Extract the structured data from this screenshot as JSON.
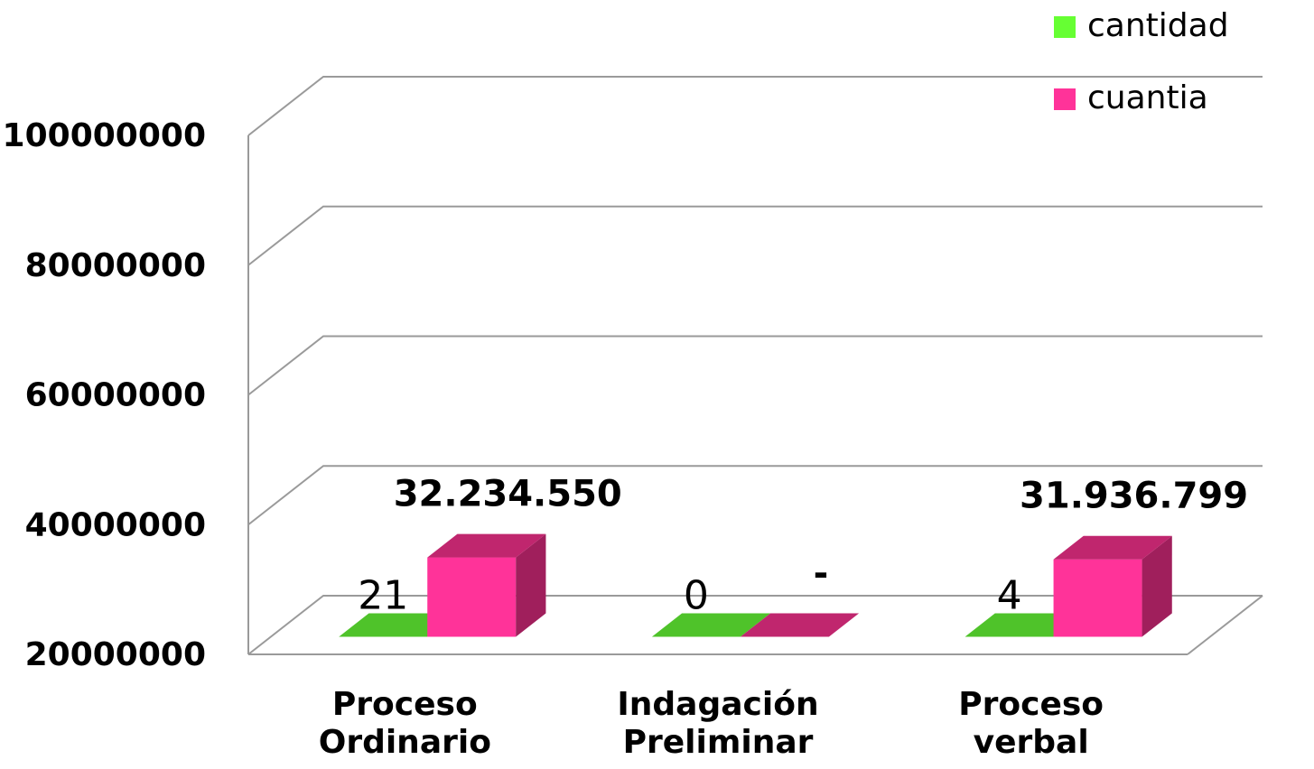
{
  "chart_data": {
    "type": "bar3d",
    "categories": [
      "Proceso Ordinario",
      "Indagación Preliminar",
      "Proceso verbal"
    ],
    "series": [
      {
        "name": "cantidad",
        "color": "#66ff33",
        "values": [
          21,
          0,
          4
        ],
        "value_labels": [
          "21",
          "0",
          "4"
        ]
      },
      {
        "name": "cuantia",
        "color": "#ff3399",
        "values": [
          32234550,
          0,
          31936799
        ],
        "value_labels": [
          "32.234.550",
          "-",
          "31.936.799"
        ]
      }
    ],
    "ylim": [
      20000000,
      100000000
    ],
    "yticks": [
      20000000,
      40000000,
      60000000,
      80000000,
      100000000
    ],
    "grid": true,
    "legend": "top-right"
  }
}
